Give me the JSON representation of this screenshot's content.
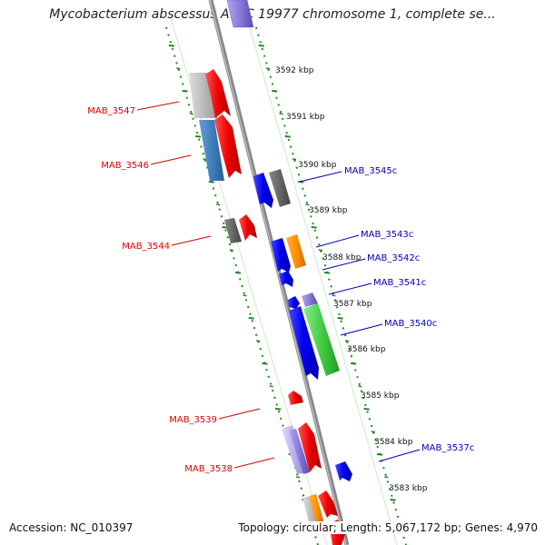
{
  "title": "Mycobacterium abscessus ATCC 19977 chromosome 1, complete se...",
  "footer": {
    "accession": "Accession: NC_010397",
    "stats": "Topology: circular; Length: 5,067,172 bp; Genes: 4,970"
  },
  "colors": {
    "forward_label": "#dd0000",
    "reverse_label": "#0000bb",
    "axis": "#888888",
    "tick": "#228822"
  },
  "kbp_labels": [
    "3592 kbp",
    "3591 kbp",
    "3590 kbp",
    "3589 kbp",
    "3588 kbp",
    "3587 kbp",
    "3586 kbp",
    "3585 kbp",
    "3584 kbp",
    "3583 kbp"
  ],
  "gene_labels": [
    {
      "text": "MAB_3547",
      "strand": "forward"
    },
    {
      "text": "MAB_3546",
      "strand": "forward"
    },
    {
      "text": "MAB_3544",
      "strand": "forward"
    },
    {
      "text": "MAB_3539",
      "strand": "forward"
    },
    {
      "text": "MAB_3538",
      "strand": "forward"
    },
    {
      "text": "MAB_3545c",
      "strand": "reverse"
    },
    {
      "text": "MAB_3543c",
      "strand": "reverse"
    },
    {
      "text": "MAB_3542c",
      "strand": "reverse"
    },
    {
      "text": "MAB_3541c",
      "strand": "reverse"
    },
    {
      "text": "MAB_3540c",
      "strand": "reverse"
    },
    {
      "text": "MAB_3537c",
      "strand": "reverse"
    }
  ]
}
